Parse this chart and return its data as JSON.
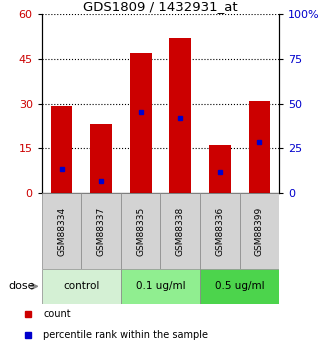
{
  "title": "GDS1809 / 1432931_at",
  "samples": [
    "GSM88334",
    "GSM88337",
    "GSM88335",
    "GSM88338",
    "GSM88336",
    "GSM88399"
  ],
  "bar_heights": [
    29,
    23,
    47,
    52,
    16,
    31
  ],
  "blue_positions": [
    8,
    4,
    27,
    25,
    7,
    17
  ],
  "left_ylim": [
    0,
    60
  ],
  "right_ylim": [
    0,
    100
  ],
  "left_yticks": [
    0,
    15,
    30,
    45,
    60
  ],
  "right_yticks": [
    0,
    25,
    50,
    75,
    100
  ],
  "right_yticklabels": [
    "0",
    "25",
    "50",
    "75",
    "100%"
  ],
  "bar_color": "#cc0000",
  "blue_color": "#0000cc",
  "grid_color": "#000000",
  "sample_box_color": "#d3d3d3",
  "dose_groups": [
    {
      "label": "control",
      "indices": [
        0,
        1
      ],
      "color": "#d4f0d4"
    },
    {
      "label": "0.1 ug/ml",
      "indices": [
        2,
        3
      ],
      "color": "#90ee90"
    },
    {
      "label": "0.5 ug/ml",
      "indices": [
        4,
        5
      ],
      "color": "#4cd44c"
    }
  ],
  "dose_label": "dose",
  "legend_items": [
    {
      "label": "count",
      "color": "#cc0000"
    },
    {
      "label": "percentile rank within the sample",
      "color": "#0000cc"
    }
  ],
  "bg_color": "#ffffff",
  "tick_label_color_left": "#cc0000",
  "tick_label_color_right": "#0000cc",
  "n_samples": 6
}
